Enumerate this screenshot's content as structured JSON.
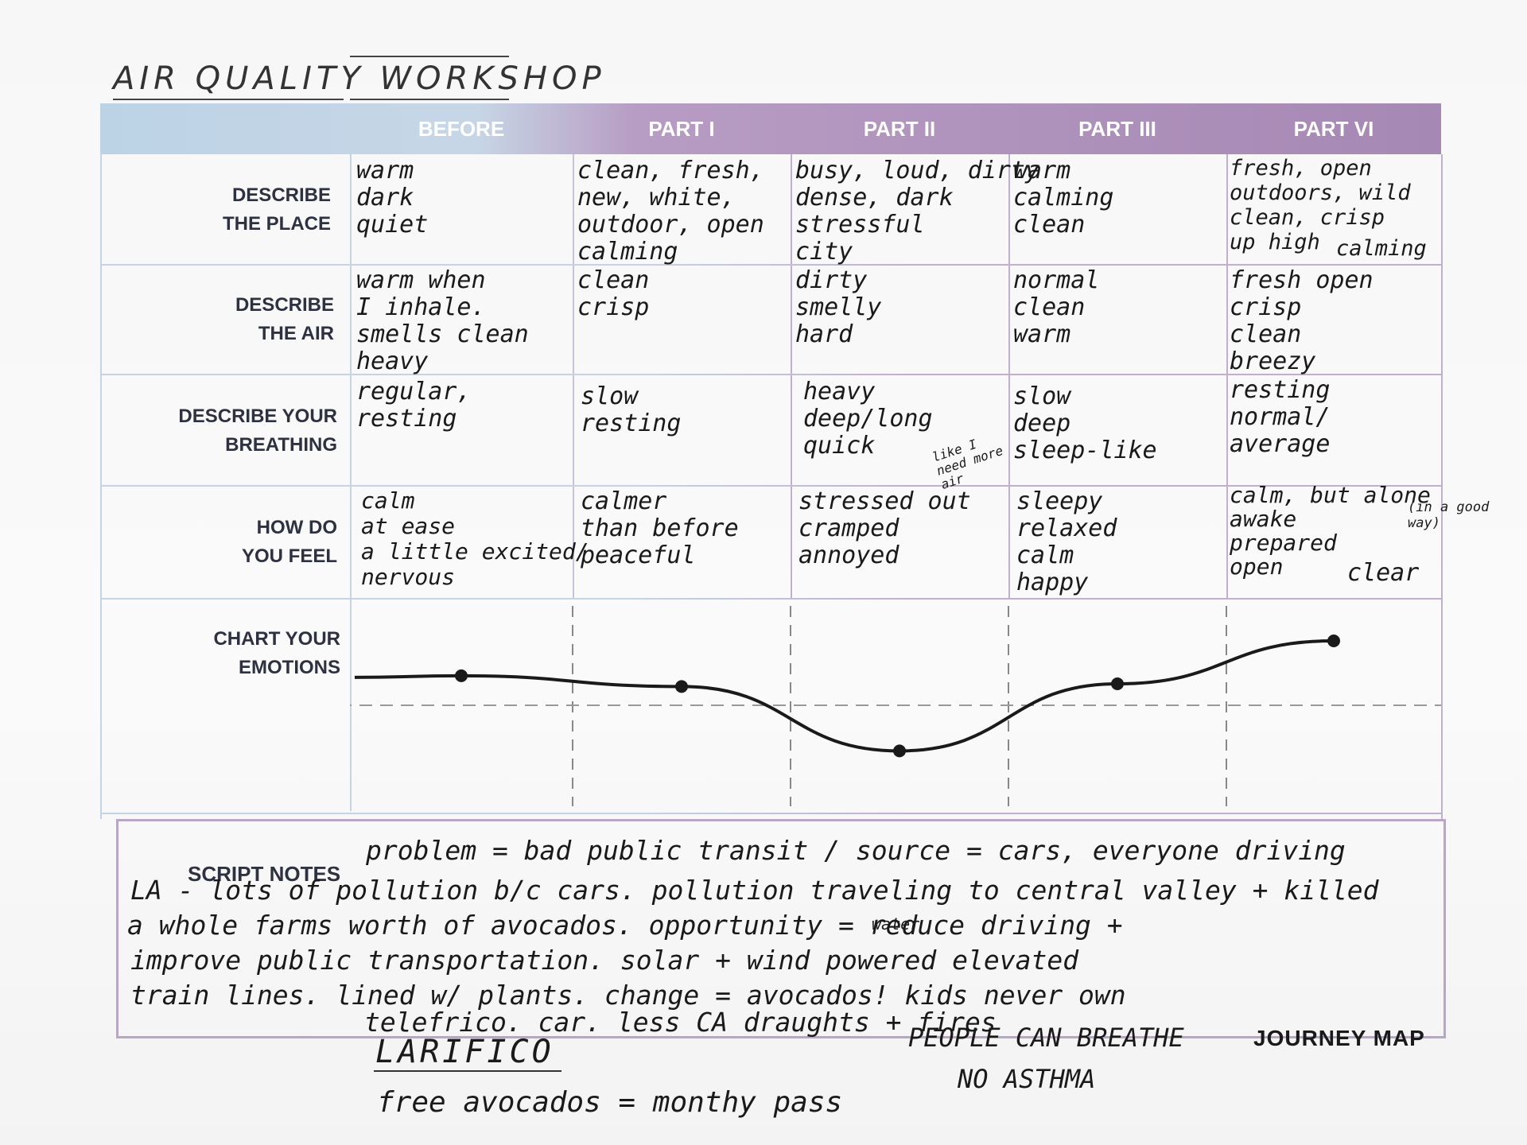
{
  "workshop_title": {
    "word1": "AIR",
    "word2": "QUALITY",
    "word3": "WORKSHOP"
  },
  "columns": [
    "BEFORE",
    "PART I",
    "PART II",
    "PART III",
    "PART VI"
  ],
  "rows": [
    {
      "label_line1": "DESCRIBE",
      "label_line2": "THE PLACE",
      "cells": [
        "warm\ndark\nquiet",
        "clean, fresh,\nnew, white,\noutdoor, open\ncalming",
        "busy, loud, dirty\ndense, dark\nstressful\ncity",
        "warm\ncalming\nclean",
        "fresh, open\noutdoors, wild\nclean, crisp\nup high"
      ],
      "extra": "calming"
    },
    {
      "label_line1": "DESCRIBE",
      "label_line2": "THE AIR",
      "cells": [
        "warm when\nI inhale.\nsmells clean\nheavy",
        "clean\ncrisp",
        "dirty\nsmelly\nhard",
        "normal\nclean\nwarm",
        "fresh  open\ncrisp\nclean\nbreezy"
      ]
    },
    {
      "label_line1": "DESCRIBE YOUR",
      "label_line2": "BREATHING",
      "cells": [
        "regular,\nresting",
        "slow\nresting",
        "heavy\ndeep/long\nquick",
        "slow\ndeep\nsleep-like",
        "resting\nnormal/\naverage"
      ],
      "aside": "like I need more air"
    },
    {
      "label_line1": "HOW DO",
      "label_line2": "YOU FEEL",
      "cells": [
        "calm\nat ease\na little excited/\nnervous",
        "calmer\nthan before\npeaceful",
        "stressed out\ncramped\nannoyed",
        "sleepy\nrelaxed\ncalm\nhappy",
        "calm, but alone\nawake\nprepared\nopen"
      ],
      "aside": "(in a good way)",
      "extra": "clear"
    }
  ],
  "chart_label": {
    "line1": "CHART YOUR",
    "line2": "EMOTIONS"
  },
  "chart_data": {
    "type": "line",
    "categories": [
      "BEFORE",
      "PART I",
      "PART II",
      "PART III",
      "PART VI"
    ],
    "values": [
      0.55,
      0.35,
      -0.85,
      0.4,
      1.2
    ],
    "ylim": [
      -2,
      2
    ],
    "baseline": 0,
    "title": "",
    "xlabel": "",
    "ylabel": ""
  },
  "notes": {
    "label": "SCRIPT NOTES",
    "lines": [
      "problem = bad public transit / source = cars, everyone driving",
      "LA - lots of pollution b/c cars. pollution traveling to central valley + killed",
      "a whole farms worth of avocados. opportunity = reduce driving +",
      "improve public transportation. solar + wind powered elevated",
      "train lines. lined w/ plants.   change = avocados! kids never own",
      "telefrico.                       car. less CA draughts + fires"
    ],
    "insert": "water"
  },
  "footer": {
    "name": "LARIFICO",
    "line1": "free avocados = monthy pass",
    "people": "PEOPLE CAN BREATHE",
    "asthma": "NO ASTHMA",
    "journey": "JOURNEY MAP"
  },
  "colors": {
    "blue": "#bcd3e6",
    "purple": "#a688b4",
    "ink": "#1b1b1b"
  }
}
